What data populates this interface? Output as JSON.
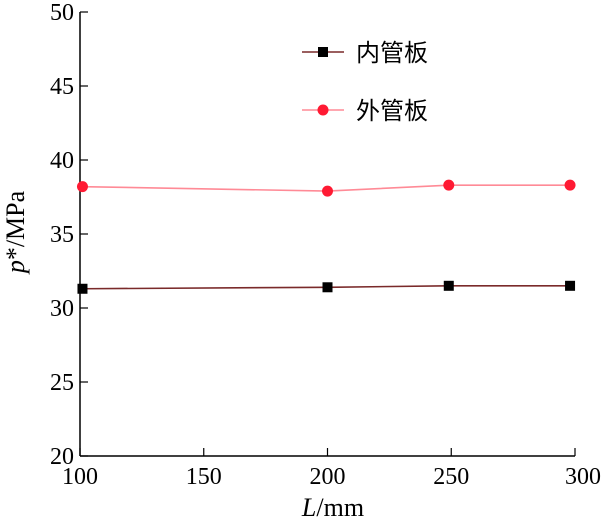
{
  "chart_data": {
    "type": "line",
    "x": [
      101,
      200,
      249,
      298
    ],
    "series": [
      {
        "name": "内管板",
        "values": [
          31.3,
          31.4,
          31.5,
          31.5
        ],
        "color": "#000000",
        "line_color": "#7a2a2a",
        "marker": "square"
      },
      {
        "name": "外管板",
        "values": [
          38.2,
          37.9,
          38.3,
          38.3
        ],
        "color": "#ff1a33",
        "line_color": "#ff8a96",
        "marker": "circle"
      }
    ],
    "xlabel_italic": "L",
    "xlabel_rest": "/mm",
    "ylabel_italic": "p",
    "ylabel_rest": "*/MPa",
    "xlim": [
      100,
      300
    ],
    "ylim": [
      20,
      50
    ],
    "xticks": [
      100,
      150,
      200,
      250,
      300
    ],
    "yticks": [
      20,
      25,
      30,
      35,
      40,
      45,
      50
    ],
    "legend_position": "top-right",
    "grid": false
  }
}
